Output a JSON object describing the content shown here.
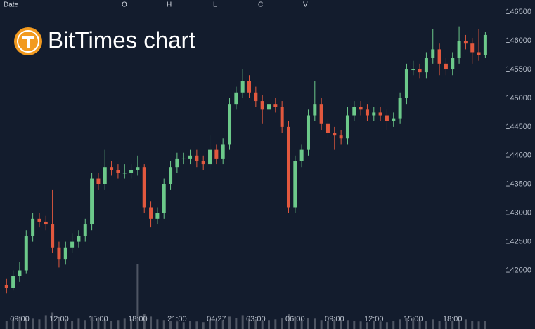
{
  "chart_data": {
    "type": "candlestick",
    "title": "BitTimes chart",
    "header": {
      "date": "Date",
      "open": "O",
      "high": "H",
      "low": "L",
      "close": "C",
      "volume": "V"
    },
    "categories": [
      null,
      null,
      "09:00",
      null,
      null,
      null,
      null,
      null,
      "12:00",
      null,
      null,
      null,
      null,
      null,
      "15:00",
      null,
      null,
      null,
      null,
      null,
      "18:00",
      null,
      null,
      null,
      null,
      null,
      "21:00",
      null,
      null,
      null,
      null,
      null,
      "04/27",
      null,
      null,
      null,
      null,
      null,
      "03:00",
      null,
      null,
      null,
      null,
      null,
      "06:00",
      null,
      null,
      null,
      null,
      null,
      "09:00",
      null,
      null,
      null,
      null,
      null,
      "12:00",
      null,
      null,
      null,
      null,
      null,
      "15:00",
      null,
      null,
      null,
      null,
      null,
      "18:00",
      null,
      null,
      null,
      null,
      null
    ],
    "open": [
      141750,
      141700,
      141900,
      142000,
      142600,
      142900,
      142850,
      142800,
      142400,
      142200,
      142400,
      142500,
      142600,
      142800,
      143600,
      143500,
      143800,
      143750,
      143700,
      143700,
      143750,
      143800,
      143100,
      142900,
      143000,
      143500,
      143800,
      143950,
      143950,
      144000,
      143900,
      143850,
      144100,
      143950,
      144200,
      144900,
      145100,
      145300,
      145100,
      144950,
      144800,
      144900,
      144850,
      144500,
      143100,
      143900,
      144100,
      144700,
      144900,
      144550,
      144400,
      144350,
      144300,
      144700,
      144850,
      144800,
      144700,
      144750,
      144700,
      144600,
      144650,
      145000,
      145500,
      145500,
      145450,
      145700,
      145850,
      145600,
      145500,
      145700,
      146000,
      145950,
      145800,
      145750
    ],
    "high": [
      141850,
      142000,
      142150,
      142700,
      143000,
      143000,
      142950,
      143400,
      142500,
      142500,
      142650,
      142700,
      142900,
      143700,
      143700,
      144100,
      143900,
      143850,
      143850,
      143850,
      144000,
      143850,
      143200,
      143100,
      143600,
      143900,
      144050,
      144050,
      144100,
      144100,
      144000,
      144350,
      144200,
      144300,
      145000,
      145200,
      145500,
      145400,
      145200,
      145050,
      145000,
      145000,
      144950,
      144600,
      144000,
      144200,
      144800,
      145300,
      145000,
      144650,
      144500,
      144450,
      144850,
      144950,
      144950,
      144900,
      144850,
      144850,
      144800,
      144750,
      145100,
      145600,
      145650,
      145600,
      145800,
      146200,
      145950,
      145700,
      145800,
      146250,
      146100,
      146050,
      146200,
      146150
    ],
    "low": [
      141600,
      141650,
      141800,
      141950,
      142500,
      142750,
      142700,
      142300,
      142050,
      142100,
      142300,
      142400,
      142500,
      142700,
      143400,
      143400,
      143650,
      143600,
      143600,
      143600,
      143650,
      143000,
      142750,
      142800,
      142900,
      143400,
      143700,
      143850,
      143850,
      143800,
      143750,
      143750,
      143850,
      143850,
      144100,
      144800,
      145000,
      145000,
      144850,
      144550,
      144700,
      144750,
      144400,
      143000,
      143000,
      143800,
      144000,
      144600,
      144450,
      144300,
      144100,
      144200,
      144200,
      144600,
      144700,
      144600,
      144600,
      144600,
      144450,
      144500,
      144550,
      144900,
      145400,
      145350,
      145350,
      145600,
      145400,
      145400,
      145400,
      145600,
      145850,
      145600,
      145650,
      145700
    ],
    "close": [
      141700,
      141900,
      142000,
      142600,
      142900,
      142850,
      142800,
      142400,
      142200,
      142400,
      142500,
      142600,
      142800,
      143600,
      143500,
      143800,
      143750,
      143700,
      143700,
      143750,
      143800,
      143100,
      142900,
      143000,
      143500,
      143800,
      143950,
      143950,
      144000,
      143900,
      143850,
      144100,
      143950,
      144200,
      144900,
      145100,
      145300,
      145100,
      144950,
      144800,
      144900,
      144850,
      144500,
      143100,
      143900,
      144100,
      144700,
      144900,
      144550,
      144400,
      144350,
      144300,
      144700,
      144850,
      144800,
      144700,
      144750,
      144700,
      144600,
      144650,
      145000,
      145500,
      145500,
      145450,
      145700,
      145850,
      145600,
      145500,
      145700,
      146000,
      145950,
      145800,
      145750,
      146100
    ],
    "volume": [
      12,
      14,
      18,
      16,
      15,
      14,
      20,
      24,
      16,
      14,
      12,
      15,
      13,
      18,
      16,
      14,
      12,
      13,
      15,
      14,
      95,
      22,
      18,
      14,
      13,
      12,
      11,
      10,
      12,
      11,
      10,
      14,
      12,
      13,
      18,
      16,
      20,
      15,
      14,
      12,
      13,
      14,
      16,
      22,
      18,
      14,
      16,
      15,
      13,
      12,
      14,
      12,
      13,
      12,
      11,
      10,
      12,
      11,
      10,
      12,
      14,
      16,
      15,
      13,
      12,
      14,
      12,
      11,
      12,
      13,
      14,
      12,
      11,
      12
    ],
    "up_color": "#6cc98a",
    "down_color": "#e2583e",
    "volume_color": "#4e5563",
    "ylim": [
      140980,
      146710
    ],
    "yticks": [
      142000,
      142500,
      143000,
      143500,
      144000,
      144500,
      145000,
      145500,
      146000,
      146500
    ],
    "grid": false
  }
}
